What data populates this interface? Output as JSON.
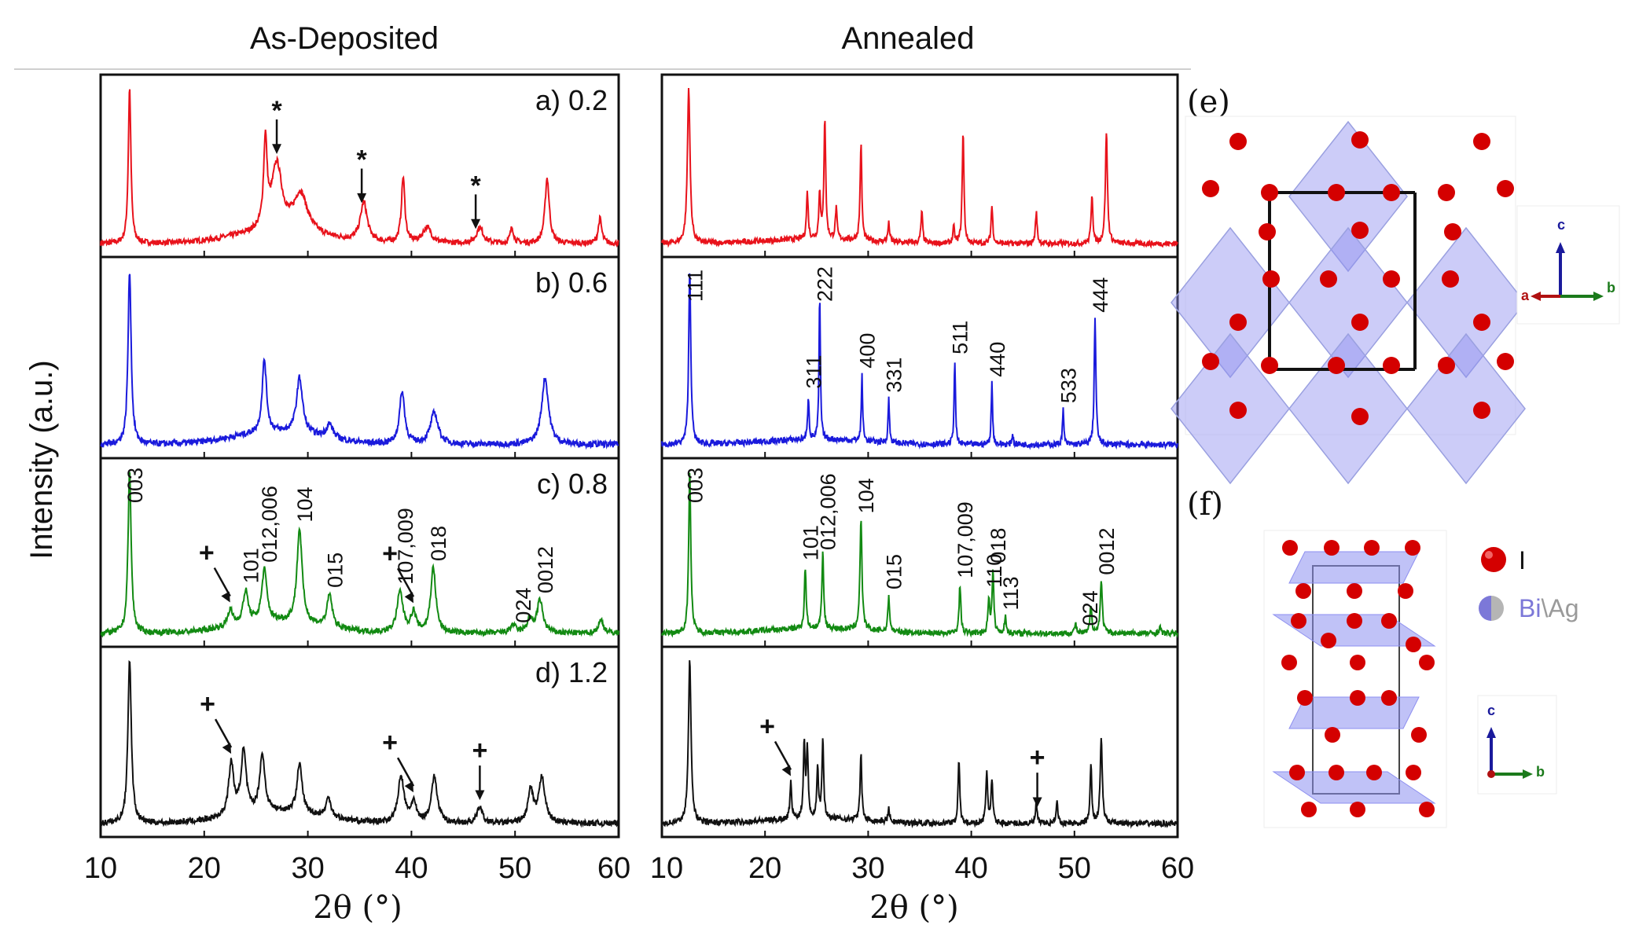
{
  "titles": {
    "left": "As-Deposited",
    "right": "Annealed"
  },
  "y_label": "Intensity (a.u.)",
  "x_label": "2θ (°)",
  "panel_labels": [
    "a) 0.2",
    "b) 0.6",
    "c) 0.8",
    "d) 1.2"
  ],
  "structure_labels": {
    "e": "(e)",
    "f": "(f)"
  },
  "legend": {
    "atom1": "I",
    "atom2_a": "Bi",
    "atom2_sep": "\\",
    "atom2_b": "Ag"
  },
  "axes_e": {
    "c": "c",
    "a": "a",
    "b": "b"
  },
  "axes_f": {
    "c": "c",
    "b": "b"
  },
  "colors": {
    "red": "#e8121b",
    "blue": "#1a1adc",
    "green": "#128a12",
    "black": "#111111",
    "octa": "#8d8ff0",
    "atom": "#d40000"
  },
  "chart_data": {
    "type": "line",
    "xlabel": "2θ (°)",
    "ylabel": "Intensity (a.u.)",
    "xlim": [
      10,
      60
    ],
    "xticks": [
      10,
      20,
      30,
      40,
      50,
      60
    ],
    "grid": false,
    "panels": [
      {
        "column": "As-Deposited",
        "label": "a) 0.2",
        "color": "#e8121b",
        "peaks": [
          [
            12.8,
            1.0,
            0.15
          ],
          [
            25.9,
            0.55,
            0.2
          ],
          [
            27.0,
            0.42,
            0.6
          ],
          [
            29.3,
            0.25,
            0.8
          ],
          [
            35.4,
            0.25,
            0.4
          ],
          [
            39.2,
            0.42,
            0.2
          ],
          [
            41.5,
            0.1,
            0.5
          ],
          [
            46.6,
            0.1,
            0.4
          ],
          [
            49.7,
            0.1,
            0.2
          ],
          [
            53.1,
            0.42,
            0.25
          ],
          [
            58.2,
            0.16,
            0.2
          ]
        ],
        "markers": [
          {
            "symbol": "*",
            "x": 27.0
          },
          {
            "symbol": "*",
            "x": 35.2
          },
          {
            "symbol": "*",
            "x": 46.2
          }
        ]
      },
      {
        "column": "Annealed",
        "label": "",
        "color": "#e8121b",
        "peaks": [
          [
            12.6,
            1.0,
            0.15
          ],
          [
            24.1,
            0.3,
            0.1
          ],
          [
            25.3,
            0.3,
            0.1
          ],
          [
            25.8,
            0.78,
            0.1
          ],
          [
            26.9,
            0.2,
            0.1
          ],
          [
            29.3,
            0.62,
            0.1
          ],
          [
            32.0,
            0.12,
            0.1
          ],
          [
            35.2,
            0.2,
            0.1
          ],
          [
            38.3,
            0.1,
            0.1
          ],
          [
            39.2,
            0.72,
            0.1
          ],
          [
            42.0,
            0.24,
            0.1
          ],
          [
            46.3,
            0.2,
            0.1
          ],
          [
            51.7,
            0.32,
            0.1
          ],
          [
            53.1,
            0.72,
            0.12
          ]
        ],
        "markers": []
      },
      {
        "column": "As-Deposited",
        "label": "b) 0.6",
        "color": "#1a1adc",
        "peaks": [
          [
            12.8,
            1.0,
            0.18
          ],
          [
            25.8,
            0.42,
            0.25
          ],
          [
            29.2,
            0.32,
            0.35
          ],
          [
            32.1,
            0.08,
            0.4
          ],
          [
            39.1,
            0.3,
            0.3
          ],
          [
            42.2,
            0.18,
            0.45
          ],
          [
            52.9,
            0.38,
            0.4
          ]
        ],
        "markers": []
      },
      {
        "column": "Annealed",
        "label": "",
        "color": "#1a1adc",
        "peaks": [
          [
            12.7,
            1.0,
            0.12
          ],
          [
            24.2,
            0.25,
            0.08
          ],
          [
            25.3,
            0.82,
            0.08
          ],
          [
            29.4,
            0.38,
            0.08
          ],
          [
            32.0,
            0.25,
            0.08
          ],
          [
            38.4,
            0.48,
            0.08
          ],
          [
            42.0,
            0.35,
            0.08
          ],
          [
            44.0,
            0.06,
            0.08
          ],
          [
            48.9,
            0.2,
            0.08
          ],
          [
            52.0,
            0.72,
            0.1
          ]
        ],
        "markers": [],
        "hkl": [
          [
            "111",
            12.7
          ],
          [
            "311",
            24.2
          ],
          [
            "222",
            25.3
          ],
          [
            "400",
            29.4
          ],
          [
            "331",
            32.0
          ],
          [
            "511",
            38.4
          ],
          [
            "440",
            42.0
          ],
          [
            "533",
            48.9
          ],
          [
            "444",
            52.0
          ]
        ]
      },
      {
        "column": "As-Deposited",
        "label": "c) 0.8",
        "color": "#128a12",
        "peaks": [
          [
            12.8,
            1.0,
            0.18
          ],
          [
            22.5,
            0.1,
            0.3
          ],
          [
            24.0,
            0.2,
            0.3
          ],
          [
            25.8,
            0.32,
            0.3
          ],
          [
            29.2,
            0.58,
            0.3
          ],
          [
            32.1,
            0.2,
            0.3
          ],
          [
            38.9,
            0.25,
            0.35
          ],
          [
            40.2,
            0.12,
            0.3
          ],
          [
            42.1,
            0.4,
            0.3
          ],
          [
            49.8,
            0.05,
            0.3
          ],
          [
            51.4,
            0.08,
            0.3
          ],
          [
            52.4,
            0.2,
            0.35
          ],
          [
            58.3,
            0.08,
            0.3
          ]
        ],
        "markers": [
          {
            "symbol": "+",
            "x": 22.5
          },
          {
            "symbol": "+",
            "x": 40.2
          }
        ],
        "hkl": [
          [
            "003",
            12.8
          ],
          [
            "101",
            24.0
          ],
          [
            "012,006",
            25.8
          ],
          [
            "104",
            29.2
          ],
          [
            "015",
            32.1
          ],
          [
            "107,009",
            38.9
          ],
          [
            "018",
            42.1
          ],
          [
            "024",
            50.3
          ],
          [
            "0012",
            52.4
          ]
        ]
      },
      {
        "column": "Annealed",
        "label": "",
        "color": "#128a12",
        "peaks": [
          [
            12.7,
            1.0,
            0.12
          ],
          [
            23.9,
            0.38,
            0.1
          ],
          [
            25.6,
            0.48,
            0.1
          ],
          [
            29.3,
            0.68,
            0.12
          ],
          [
            32.0,
            0.22,
            0.1
          ],
          [
            38.9,
            0.3,
            0.1
          ],
          [
            41.7,
            0.22,
            0.1
          ],
          [
            42.1,
            0.38,
            0.1
          ],
          [
            43.3,
            0.1,
            0.1
          ],
          [
            50.1,
            0.06,
            0.1
          ],
          [
            51.6,
            0.18,
            0.1
          ],
          [
            52.6,
            0.32,
            0.12
          ],
          [
            58.3,
            0.04,
            0.1
          ]
        ],
        "markers": [],
        "hkl": [
          [
            "003",
            12.7
          ],
          [
            "101",
            23.9
          ],
          [
            "012,006",
            25.6
          ],
          [
            "104",
            29.3
          ],
          [
            "015",
            32.0
          ],
          [
            "107,009",
            38.9
          ],
          [
            "110",
            41.7
          ],
          [
            "018",
            42.1
          ],
          [
            "113",
            43.3
          ],
          [
            "024",
            51.0
          ],
          [
            "0012",
            52.6
          ]
        ]
      },
      {
        "column": "As-Deposited",
        "label": "d) 1.2",
        "color": "#111111",
        "peaks": [
          [
            12.8,
            1.0,
            0.2
          ],
          [
            22.6,
            0.32,
            0.3
          ],
          [
            23.8,
            0.38,
            0.3
          ],
          [
            25.6,
            0.35,
            0.3
          ],
          [
            29.2,
            0.3,
            0.3
          ],
          [
            32.0,
            0.12,
            0.3
          ],
          [
            39.0,
            0.28,
            0.35
          ],
          [
            40.2,
            0.12,
            0.3
          ],
          [
            42.2,
            0.28,
            0.35
          ],
          [
            46.6,
            0.1,
            0.3
          ],
          [
            51.5,
            0.2,
            0.3
          ],
          [
            52.6,
            0.28,
            0.35
          ]
        ],
        "markers": [
          {
            "symbol": "+",
            "x": 22.6
          },
          {
            "symbol": "+",
            "x": 40.2
          },
          {
            "symbol": "+",
            "x": 46.6
          }
        ]
      },
      {
        "column": "Annealed",
        "label": "",
        "color": "#111111",
        "peaks": [
          [
            12.7,
            1.0,
            0.15
          ],
          [
            22.5,
            0.22,
            0.1
          ],
          [
            23.8,
            0.45,
            0.1
          ],
          [
            24.1,
            0.42,
            0.1
          ],
          [
            25.1,
            0.3,
            0.1
          ],
          [
            25.6,
            0.48,
            0.1
          ],
          [
            29.3,
            0.4,
            0.1
          ],
          [
            32.0,
            0.08,
            0.1
          ],
          [
            38.8,
            0.38,
            0.1
          ],
          [
            41.5,
            0.32,
            0.1
          ],
          [
            42.0,
            0.26,
            0.1
          ],
          [
            46.3,
            0.12,
            0.1
          ],
          [
            48.3,
            0.14,
            0.1
          ],
          [
            51.6,
            0.35,
            0.1
          ],
          [
            52.6,
            0.52,
            0.12
          ]
        ],
        "markers": [
          {
            "symbol": "+",
            "x": 22.5
          },
          {
            "symbol": "+",
            "x": 46.4
          }
        ]
      }
    ]
  }
}
